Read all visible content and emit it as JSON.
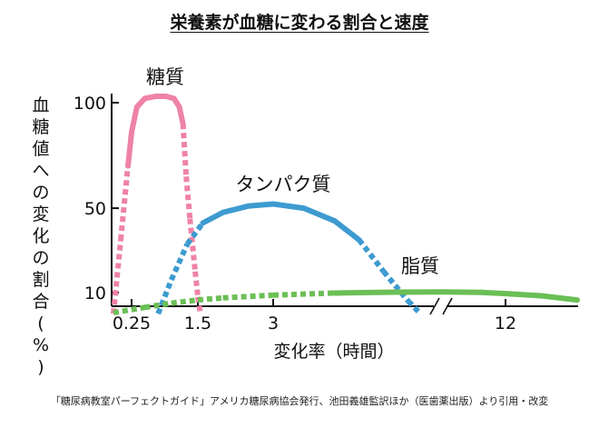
{
  "chart_data": {
    "type": "line",
    "title": "栄養素が血糖に変わる割合と速度",
    "xlabel": "変化率（時間）",
    "ylabel": "血糖値への変化の割合(%)",
    "x_ticks": [
      0.25,
      1.5,
      3,
      12
    ],
    "x_tick_labels": [
      "0.25",
      "1.5",
      "3",
      "12"
    ],
    "y_ticks": [
      10,
      50,
      100
    ],
    "y_tick_labels": [
      "10",
      "50",
      "100"
    ],
    "x_axis_break": true,
    "ylim": [
      0,
      110
    ],
    "grid": false,
    "legend": "labels on chart",
    "series": [
      {
        "name": "糖質",
        "color": "#ee82a8",
        "x": [
          0.0,
          0.1,
          0.2,
          0.25,
          0.35,
          0.5,
          0.7,
          0.9,
          1.05,
          1.15,
          1.22,
          1.28,
          1.35,
          1.45,
          1.5,
          1.55
        ],
        "y": [
          0,
          35,
          70,
          86,
          98,
          102,
          103,
          103,
          102,
          98,
          90,
          65,
          45,
          20,
          8,
          0
        ],
        "dashed_ranges": [
          [
            0.0,
            0.2
          ],
          [
            1.22,
            1.55
          ]
        ]
      },
      {
        "name": "タンパク質",
        "color": "#3d9bd0",
        "x": [
          0.75,
          1.0,
          1.3,
          1.6,
          2.0,
          2.5,
          3.0,
          3.5,
          4.0,
          4.4,
          4.8,
          5.2,
          5.4
        ],
        "y": [
          0,
          16,
          33,
          43,
          48,
          51,
          52,
          50,
          44,
          35,
          20,
          6,
          0
        ],
        "dashed_ranges": [
          [
            0.75,
            1.6
          ],
          [
            4.4,
            5.4
          ]
        ]
      },
      {
        "name": "脂質",
        "color": "#6abf55",
        "x": [
          0.0,
          0.5,
          1.0,
          1.5,
          2.0,
          3.0,
          4.0,
          5.0,
          7.0,
          10.0,
          12.0,
          13.0,
          14.0
        ],
        "y": [
          0.5,
          3,
          5,
          6.5,
          7.5,
          8.8,
          9.8,
          10.2,
          10.3,
          10.1,
          9.5,
          8.5,
          6.5
        ],
        "dashed_ranges": [
          [
            0.0,
            4.0
          ]
        ]
      }
    ]
  },
  "caption": "「糖尿病教室パーフェクトガイド」アメリカ糖尿病協会発行、池田義雄監訳ほか（医歯薬出版）より引用・改変"
}
